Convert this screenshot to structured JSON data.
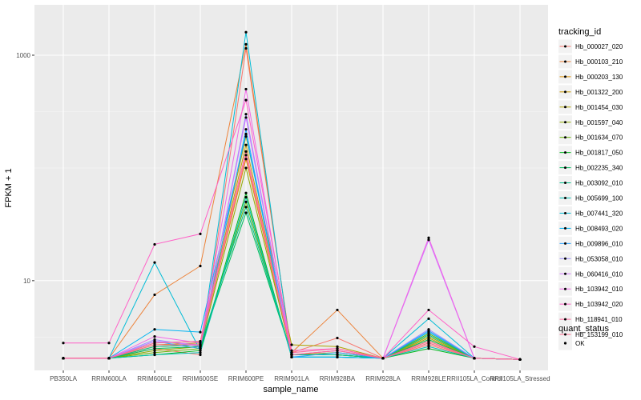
{
  "chart_data": {
    "type": "line",
    "title": "",
    "xlabel": "sample_name",
    "ylabel": "FPKM + 1",
    "y_scale": "log10",
    "ylim": [
      1.6,
      2800
    ],
    "y_ticks": [
      {
        "value": 10,
        "label": "10"
      },
      {
        "value": 1000,
        "label": "1000"
      }
    ],
    "grid": true,
    "panel_background": "#EBEBEB",
    "legend_position": "right",
    "categories": [
      "PB350LA",
      "RRIM600LA",
      "RRIM600LE",
      "RRIM600SE",
      "RRIM600PE",
      "RRIM901LA",
      "RRIM928BA",
      "RRIM928LA",
      "RRIM928LE",
      "RRII105LA_Control",
      "RRII105LA_Stressed"
    ],
    "legend_color": {
      "title": "tracking_id",
      "entries": [
        "Hb_000027_020",
        "Hb_000103_210",
        "Hb_000203_130",
        "Hb_001322_200",
        "Hb_001454_030",
        "Hb_001597_040",
        "Hb_001634_070",
        "Hb_001817_050",
        "Hb_002235_340",
        "Hb_003092_010",
        "Hb_005699_100",
        "Hb_007441_320",
        "Hb_008493_020",
        "Hb_009896_010",
        "Hb_053058_010",
        "Hb_060416_010",
        "Hb_103942_010",
        "Hb_103942_020",
        "Hb_118941_010",
        "Hb_153199_010"
      ]
    },
    "legend_shape": {
      "title": "quant_status",
      "entries": [
        "OK"
      ]
    },
    "series": [
      {
        "name": "Hb_000027_020",
        "color": "#F8766D",
        "values": [
          2.05,
          2.05,
          2.5,
          2.2,
          1150,
          2.3,
          3.1,
          2.05,
          2.7,
          2.05,
          2.0
        ]
      },
      {
        "name": "Hb_000103_210",
        "color": "#EC8239",
        "values": [
          2.05,
          2.05,
          7.5,
          13.5,
          1250,
          2.3,
          5.5,
          2.05,
          2.8,
          2.05,
          2.0
        ]
      },
      {
        "name": "Hb_000203_130",
        "color": "#DB8E00",
        "values": [
          2.05,
          2.05,
          2.6,
          2.7,
          120,
          2.2,
          2.2,
          2.05,
          2.9,
          2.05,
          2.0
        ]
      },
      {
        "name": "Hb_001322_200",
        "color": "#C79800",
        "values": [
          2.05,
          2.05,
          2.7,
          2.8,
          160,
          2.2,
          2.2,
          2.05,
          3.0,
          2.05,
          2.0
        ]
      },
      {
        "name": "Hb_001454_030",
        "color": "#AEA200",
        "values": [
          2.05,
          2.05,
          2.8,
          2.9,
          190,
          2.7,
          2.6,
          2.05,
          3.1,
          2.05,
          2.0
        ]
      },
      {
        "name": "Hb_001597_040",
        "color": "#8FAA00",
        "values": [
          2.05,
          2.05,
          2.4,
          2.6,
          100,
          2.2,
          2.3,
          2.05,
          3.2,
          2.05,
          2.0
        ]
      },
      {
        "name": "Hb_001634_070",
        "color": "#64B200",
        "values": [
          2.05,
          2.05,
          2.3,
          2.5,
          50,
          2.2,
          2.2,
          2.05,
          3.4,
          2.05,
          2.0
        ]
      },
      {
        "name": "Hb_001817_050",
        "color": "#00B81B",
        "values": [
          2.05,
          2.05,
          2.2,
          2.4,
          60,
          2.1,
          2.1,
          2.05,
          2.5,
          2.05,
          2.0
        ]
      },
      {
        "name": "Hb_002235_340",
        "color": "#00BD5C",
        "values": [
          2.05,
          2.05,
          2.5,
          2.6,
          40,
          2.2,
          2.2,
          2.05,
          3.0,
          2.05,
          2.0
        ]
      },
      {
        "name": "Hb_003092_010",
        "color": "#00C08B",
        "values": [
          2.05,
          2.05,
          2.6,
          2.7,
          45,
          2.2,
          2.2,
          2.05,
          3.3,
          2.05,
          2.0
        ]
      },
      {
        "name": "Hb_005699_100",
        "color": "#00C0B2",
        "values": [
          2.05,
          2.05,
          2.2,
          2.3,
          55,
          2.1,
          2.1,
          2.05,
          2.6,
          2.05,
          2.0
        ]
      },
      {
        "name": "Hb_007441_320",
        "color": "#00BCD6",
        "values": [
          2.05,
          2.05,
          14.5,
          2.4,
          1600,
          2.1,
          2.1,
          2.05,
          4.6,
          2.05,
          2.0
        ]
      },
      {
        "name": "Hb_008493_020",
        "color": "#00B3F2",
        "values": [
          2.05,
          2.05,
          3.7,
          3.5,
          200,
          2.1,
          2.1,
          2.05,
          3.5,
          2.05,
          2.0
        ]
      },
      {
        "name": "Hb_009896_010",
        "color": "#29A3FF",
        "values": [
          2.05,
          2.05,
          2.9,
          2.5,
          220,
          2.1,
          2.3,
          2.05,
          3.6,
          2.05,
          2.0
        ]
      },
      {
        "name": "Hb_053058_010",
        "color": "#9C8DFF",
        "values": [
          2.05,
          2.05,
          3.0,
          2.6,
          300,
          2.2,
          2.4,
          2.05,
          3.7,
          2.05,
          2.0
        ]
      },
      {
        "name": "Hb_060416_010",
        "color": "#D277FF",
        "values": [
          2.05,
          2.05,
          2.9,
          2.7,
          280,
          2.2,
          2.4,
          2.05,
          23,
          2.05,
          2.0
        ]
      },
      {
        "name": "Hb_103942_010",
        "color": "#F166E8",
        "values": [
          2.05,
          2.05,
          3.2,
          2.8,
          500,
          2.2,
          2.4,
          2.05,
          24,
          2.05,
          2.0
        ]
      },
      {
        "name": "Hb_103942_020",
        "color": "#FF61C7",
        "values": [
          2.8,
          2.8,
          21,
          26,
          400,
          2.4,
          2.5,
          2.05,
          5.5,
          2.6,
          2.0
        ]
      },
      {
        "name": "Hb_118941_010",
        "color": "#FF689E",
        "values": [
          2.05,
          2.05,
          2.8,
          2.9,
          140,
          2.3,
          2.5,
          2.05,
          2.9,
          2.05,
          2.0
        ]
      },
      {
        "name": "Hb_153199_010",
        "color": "#FF6C91",
        "values": [
          2.05,
          2.05,
          2.7,
          2.7,
          130,
          2.2,
          2.4,
          2.05,
          2.8,
          2.05,
          2.0
        ]
      }
    ]
  }
}
